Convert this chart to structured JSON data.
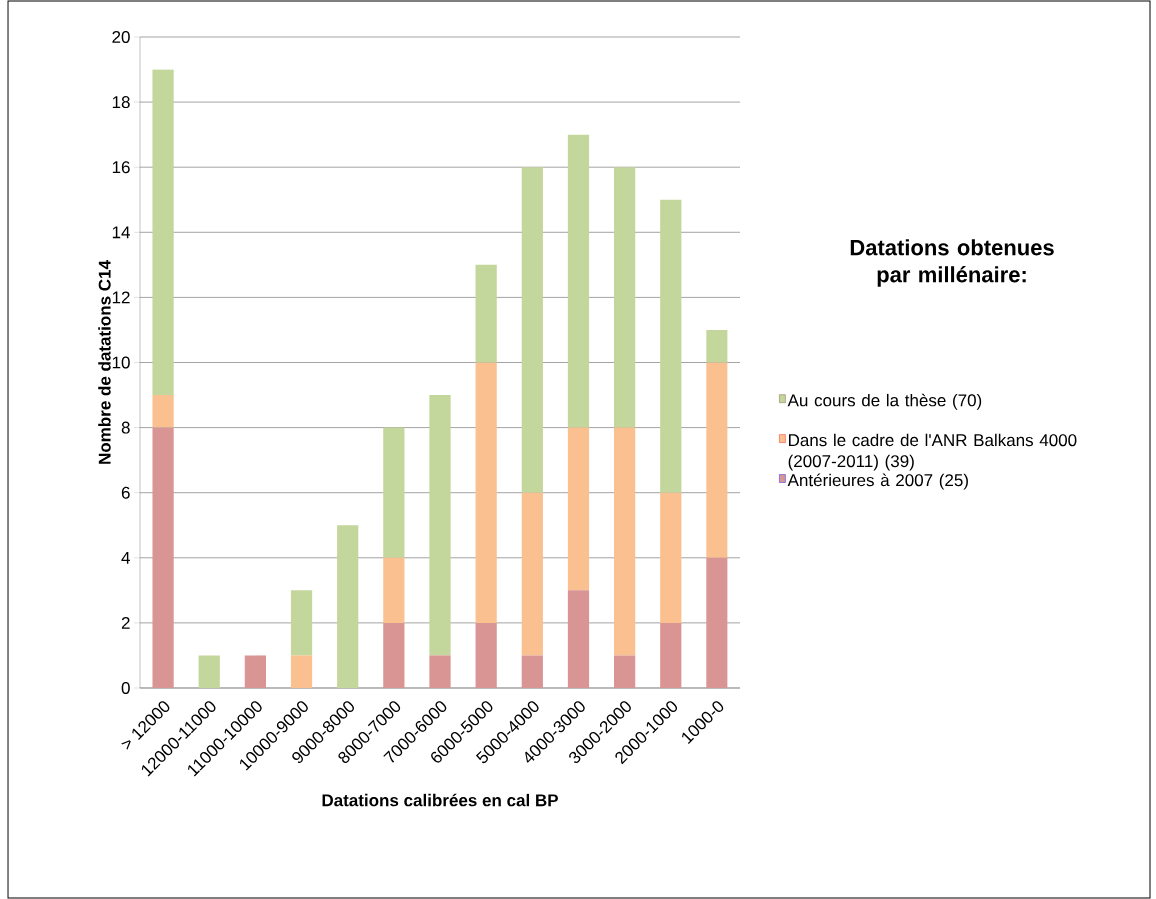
{
  "chart_data": {
    "type": "bar",
    "stacked": true,
    "xlabel": "Datations calibrées en cal BP",
    "ylabel": "Nombre de datations C14",
    "legend_title": "Datations obtenues par millénaire:",
    "categories": [
      "> 12000",
      "12000-11000",
      "11000-10000",
      "10000-9000",
      "9000-8000",
      "8000-7000",
      "7000-6000",
      "6000-5000",
      "5000-4000",
      "4000-3000",
      "3000-2000",
      "2000-1000",
      "1000-0"
    ],
    "series": [
      {
        "name": "Antérieures à 2007 (25)",
        "color": "#d99594",
        "values": [
          8,
          0,
          1,
          0,
          0,
          2,
          1,
          2,
          1,
          3,
          1,
          2,
          4
        ]
      },
      {
        "name": "Dans le cadre de l'ANR Balkans 4000 (2007-2011) (39)",
        "color": "#fac090",
        "values": [
          1,
          0,
          0,
          1,
          0,
          2,
          0,
          8,
          5,
          5,
          7,
          4,
          6
        ]
      },
      {
        "name": "Au cours de la thèse (70)",
        "color": "#c3d69b",
        "values": [
          10,
          1,
          0,
          2,
          5,
          4,
          8,
          3,
          10,
          9,
          8,
          9,
          1
        ]
      }
    ],
    "ylim": [
      0,
      20
    ],
    "yticks": [
      0,
      2,
      4,
      6,
      8,
      10,
      12,
      14,
      16,
      18,
      20
    ],
    "grid": "y",
    "legend": "right"
  }
}
